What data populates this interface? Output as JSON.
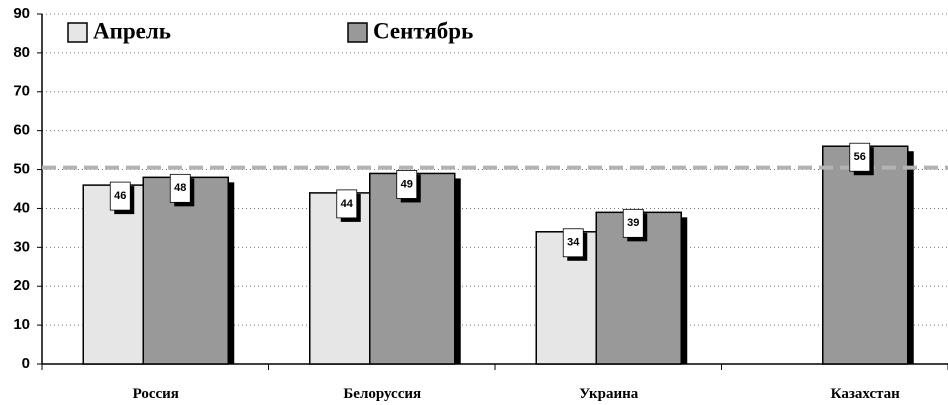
{
  "chart_data": {
    "type": "bar",
    "categories": [
      "Россия",
      "Белоруссия",
      "Украина",
      "Казахстан"
    ],
    "series": [
      {
        "name": "Апрель",
        "color": "#e6e6e6",
        "values": [
          46,
          44,
          34,
          null
        ]
      },
      {
        "name": "Сентябрь",
        "color": "#999999",
        "values": [
          48,
          49,
          39,
          56
        ]
      }
    ],
    "ylim": [
      0,
      90
    ],
    "yticks": [
      0,
      10,
      20,
      30,
      40,
      50,
      60,
      70,
      80,
      90
    ],
    "grid": true,
    "reference_line": 50.5,
    "reference_color": "#b3b3b3",
    "legend": "top-left"
  }
}
